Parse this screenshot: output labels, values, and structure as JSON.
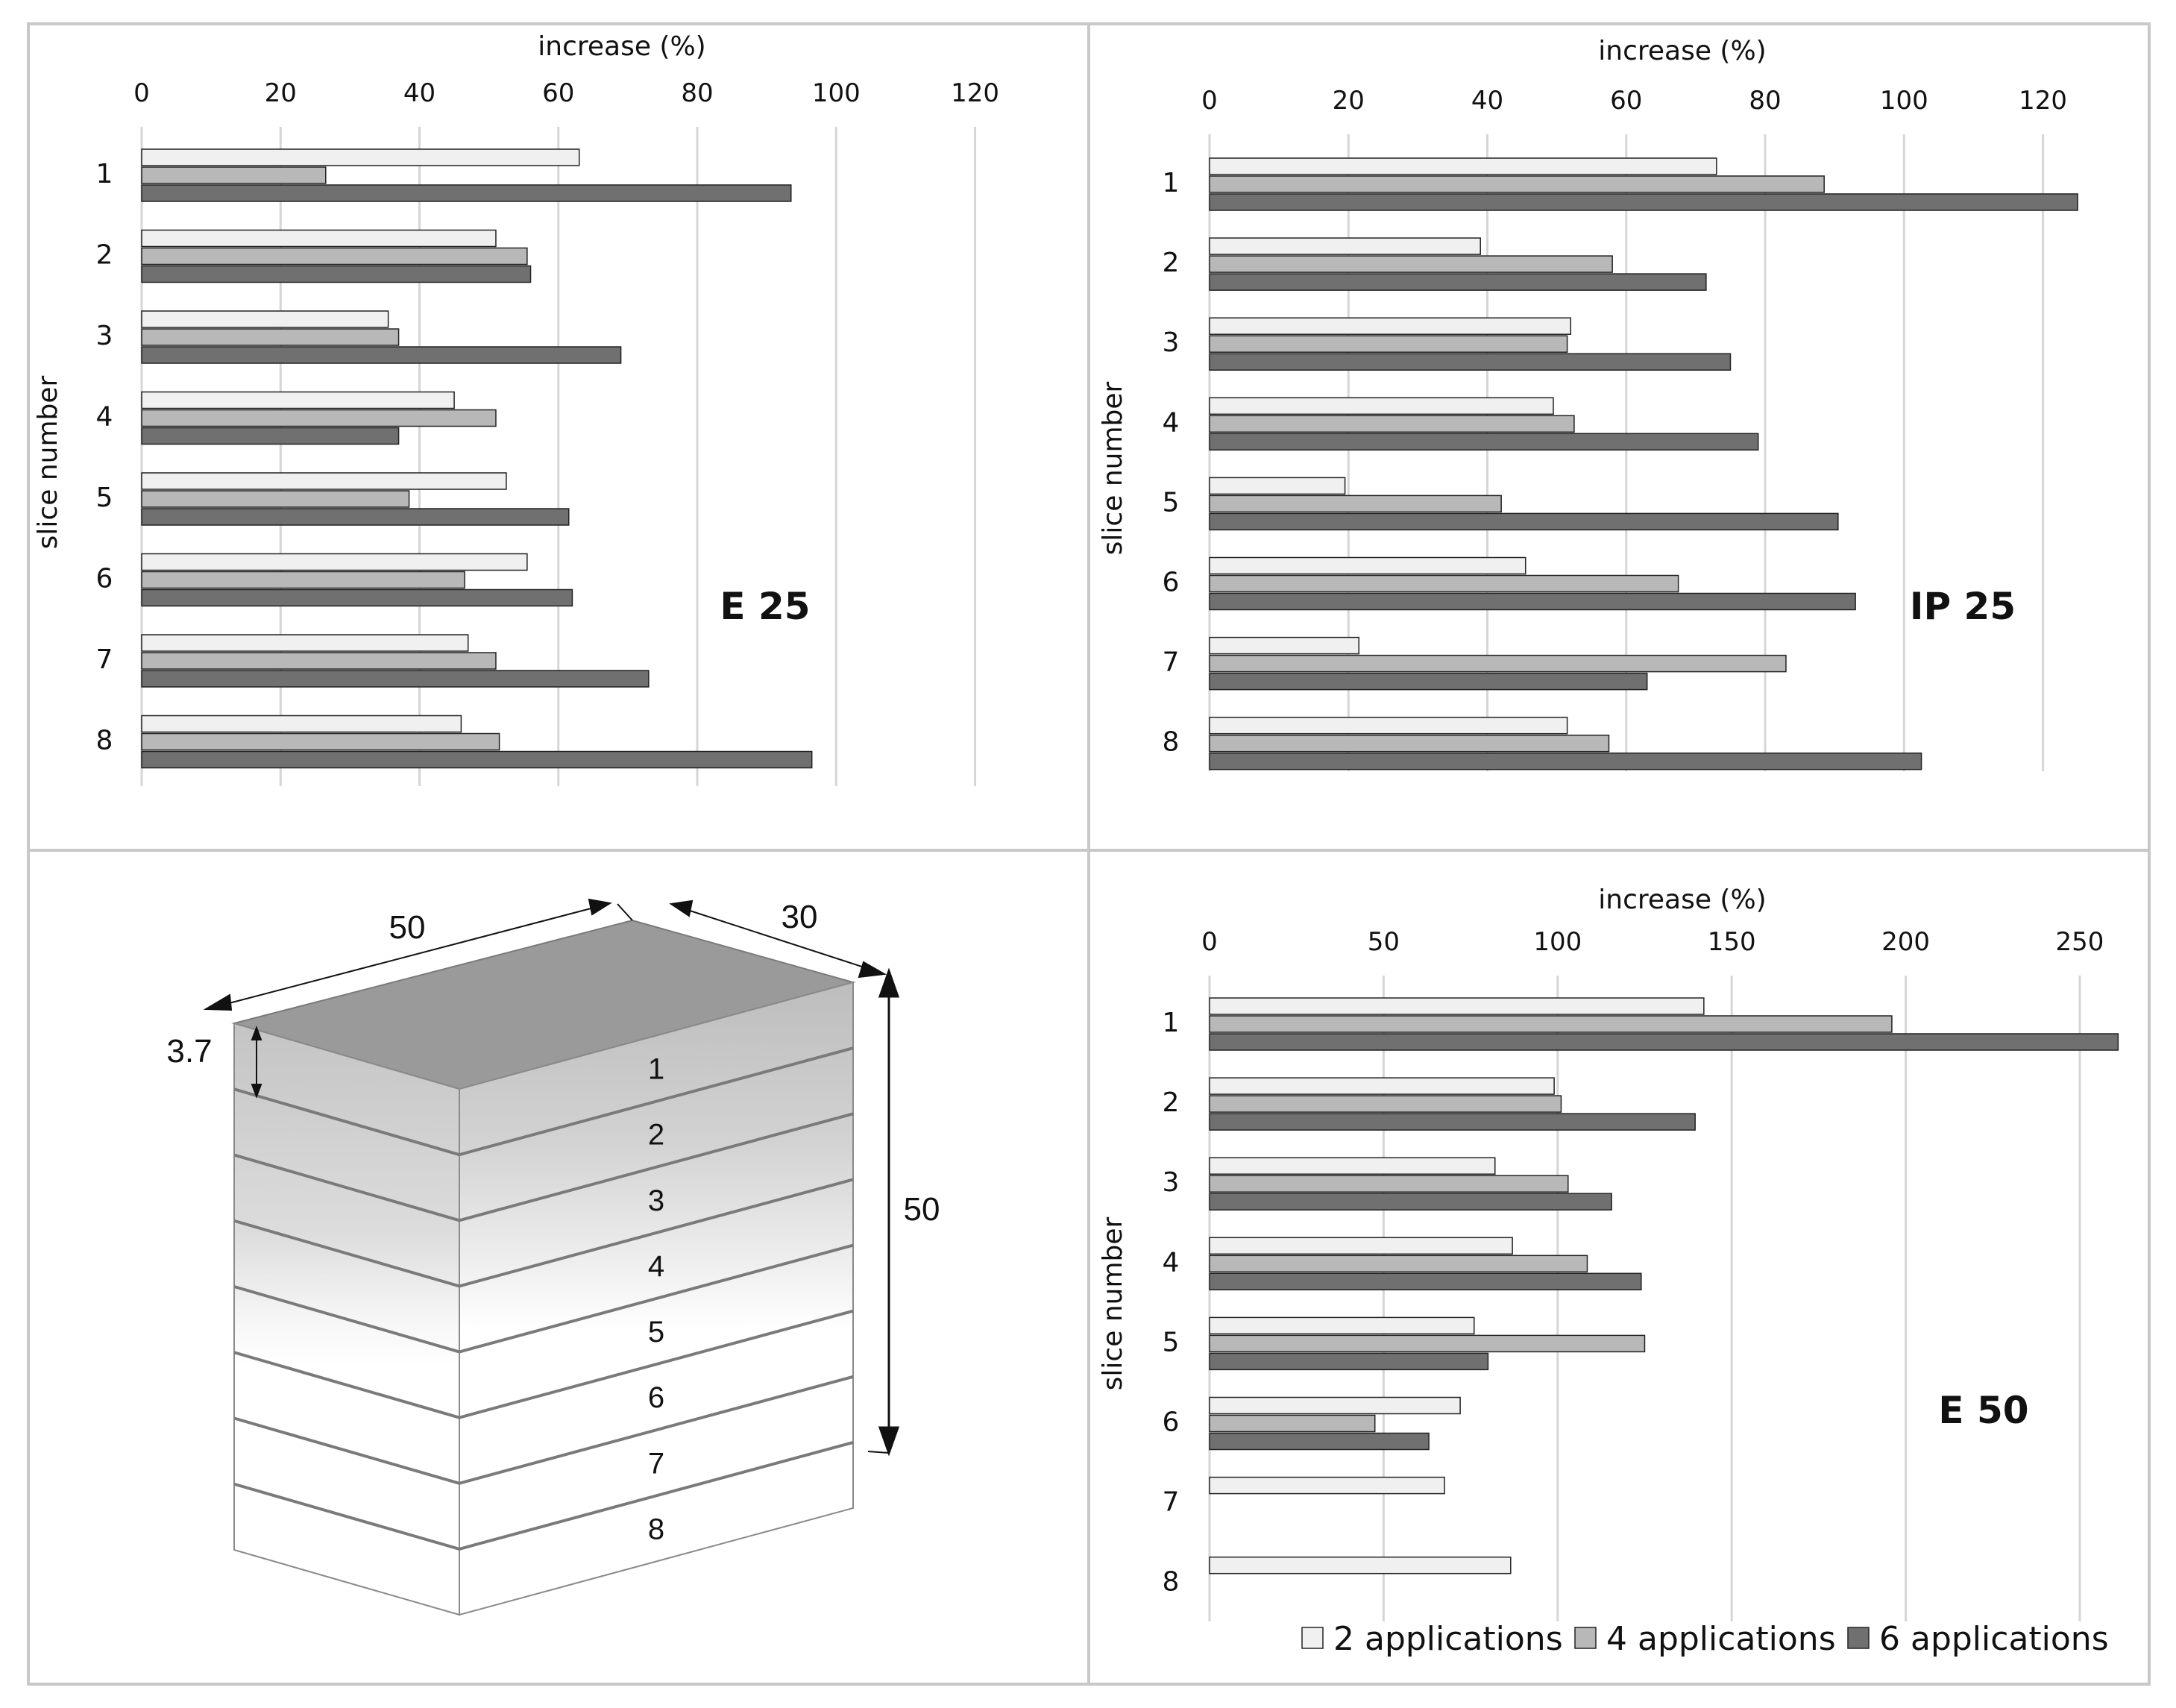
{
  "colors": {
    "s2": "#f0f0f0",
    "s4": "#b8b8b8",
    "s6": "#707070",
    "grid": "#d6d6d6",
    "border": "#c8c8c8"
  },
  "legend": [
    "2 applications",
    "4 applications",
    "6 applications"
  ],
  "chart_data": [
    {
      "type": "bar",
      "orientation": "horizontal",
      "title": "E 25",
      "xlabel": "increase (%)",
      "ylabel": "slice number",
      "xlim": [
        0,
        120
      ],
      "xticks": [
        0,
        20,
        40,
        60,
        80,
        100,
        120
      ],
      "categories": [
        "1",
        "2",
        "3",
        "4",
        "5",
        "6",
        "7",
        "8"
      ],
      "series": [
        {
          "name": "2 applications",
          "values": [
            63,
            51,
            35.5,
            45,
            52.5,
            55.5,
            47,
            46
          ]
        },
        {
          "name": "4 applications",
          "values": [
            26.5,
            55.5,
            37,
            51,
            38.5,
            46.5,
            51,
            51.5
          ]
        },
        {
          "name": "6 applications",
          "values": [
            93.5,
            56,
            69,
            37,
            61.5,
            62,
            73,
            96.5
          ]
        }
      ]
    },
    {
      "type": "bar",
      "orientation": "horizontal",
      "title": "IP 25",
      "xlabel": "increase (%)",
      "ylabel": "slice number",
      "xlim": [
        0,
        130
      ],
      "xticks": [
        0,
        20,
        40,
        60,
        80,
        100,
        120
      ],
      "categories": [
        "1",
        "2",
        "3",
        "4",
        "5",
        "6",
        "7",
        "8"
      ],
      "series": [
        {
          "name": "2 applications",
          "values": [
            73,
            39,
            52,
            49.5,
            19.5,
            45.5,
            21.5,
            51.5
          ]
        },
        {
          "name": "4 applications",
          "values": [
            88.5,
            58,
            51.5,
            52.5,
            42,
            67.5,
            83,
            57.5
          ]
        },
        {
          "name": "6 applications",
          "values": [
            125,
            71.5,
            75,
            79,
            90.5,
            93,
            63,
            102.5
          ]
        }
      ]
    },
    {
      "type": "bar",
      "orientation": "horizontal",
      "title": "E 50",
      "xlabel": "increase  (%)",
      "ylabel": "slice number",
      "xlim": [
        0,
        260
      ],
      "xticks": [
        0,
        50,
        100,
        150,
        200,
        250
      ],
      "categories": [
        "1",
        "2",
        "3",
        "4",
        "5",
        "6",
        "7",
        "8"
      ],
      "series": [
        {
          "name": "2 applications",
          "values": [
            142,
            99,
            82,
            87,
            76,
            72,
            67.5,
            86.5
          ]
        },
        {
          "name": "4 applications",
          "values": [
            196,
            101,
            103,
            108.5,
            125,
            47.5,
            null,
            null
          ]
        },
        {
          "name": "6 applications",
          "values": [
            261,
            139.5,
            115.5,
            124,
            80,
            63,
            null,
            null
          ]
        }
      ]
    }
  ],
  "diagram": {
    "length": "50",
    "width": "30",
    "height": "50",
    "slice_thickness": "3.7",
    "slices": [
      "1",
      "2",
      "3",
      "4",
      "5",
      "6",
      "7",
      "8"
    ]
  }
}
